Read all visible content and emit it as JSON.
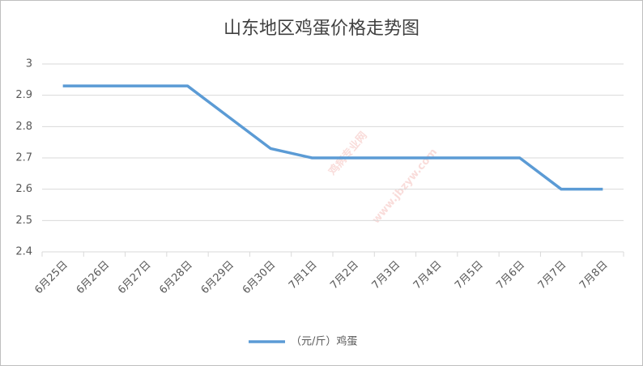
{
  "chart_data": {
    "type": "line",
    "title": "山东地区鸡蛋价格走势图",
    "categories": [
      "6月25日",
      "6月26日",
      "6月27日",
      "6月28日",
      "6月29日",
      "6月30日",
      "7月1日",
      "7月2日",
      "7月3日",
      "7月4日",
      "7月5日",
      "7月6日",
      "7月7日",
      "7月8日"
    ],
    "series": [
      {
        "name": "（元/斤）鸡蛋",
        "color": "#5b9bd5",
        "values": [
          2.93,
          2.93,
          2.93,
          2.93,
          2.83,
          2.73,
          2.7,
          2.7,
          2.7,
          2.7,
          2.7,
          2.7,
          2.6,
          2.6
        ]
      }
    ],
    "ylim": [
      2.4,
      3
    ],
    "yticks": [
      2.4,
      2.5,
      2.6,
      2.7,
      2.8,
      2.9,
      3
    ],
    "grid": true,
    "legend": "bottom",
    "watermark": [
      "鸡病专业网",
      "www.jbzyw.com"
    ]
  }
}
